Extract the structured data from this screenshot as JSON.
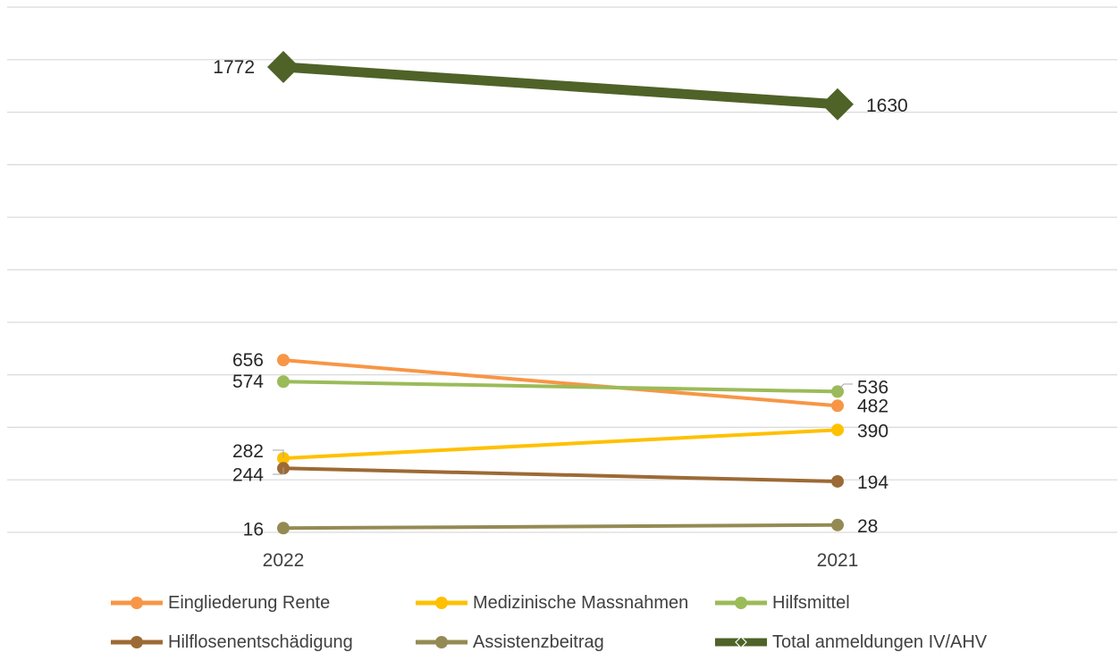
{
  "chart_data": {
    "type": "line",
    "categories": [
      "2022",
      "2021"
    ],
    "series": [
      {
        "name": "Eingliederung Rente",
        "values": [
          656,
          482
        ],
        "color": "#F79646"
      },
      {
        "name": "Medizinische Massnahmen",
        "values": [
          282,
          390
        ],
        "color": "#FFC000"
      },
      {
        "name": "Hilfsmittel",
        "values": [
          574,
          536
        ],
        "color": "#9BBB59"
      },
      {
        "name": "Hilflosenentschädigung",
        "values": [
          244,
          194
        ],
        "color": "#9C6A35"
      },
      {
        "name": "Assistenzbeitrag",
        "values": [
          16,
          28
        ],
        "color": "#948A54"
      },
      {
        "name": "Total anmeldungen IV/AHV",
        "values": [
          1772,
          1630
        ],
        "color": "#4F6228"
      }
    ],
    "value_labels": {
      "Eingliederung Rente": [
        "656",
        "482"
      ],
      "Medizinische Massnahmen": [
        "282",
        "390"
      ],
      "Hilfsmittel": [
        "574",
        "536"
      ],
      "Hilflosenentschädigung": [
        "244",
        "194"
      ],
      "Assistenzbeitrag": [
        "16",
        "28"
      ],
      "Total anmeldungen IV/AHV": [
        "1772",
        "1630"
      ]
    },
    "title": "",
    "xlabel": "",
    "ylabel": "",
    "ylim": [
      0,
      2000
    ],
    "grid": true,
    "legend_position": "bottom"
  }
}
